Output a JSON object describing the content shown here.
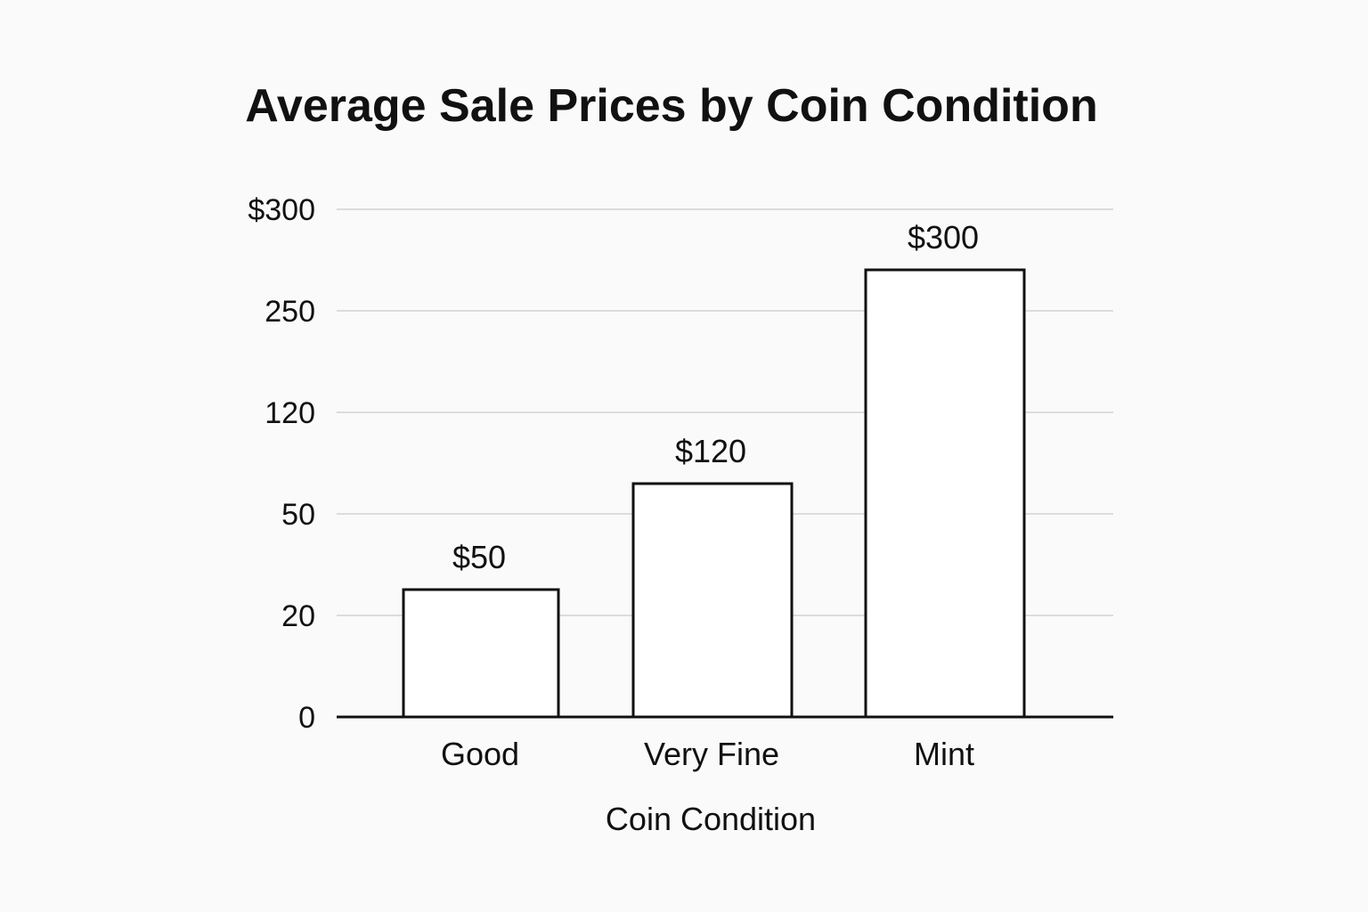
{
  "chart_data": {
    "type": "bar",
    "title": "Average Sale Prices by Coin Condition",
    "xlabel": "Coin Condition",
    "ylabel": "",
    "categories": [
      "Good",
      "Very Fine",
      "Mint"
    ],
    "values": [
      50,
      120,
      300
    ],
    "data_labels": [
      "$50",
      "$120",
      "$300"
    ],
    "y_ticks": [
      "0",
      "20",
      "50",
      "120",
      "250",
      "$300"
    ],
    "grid": true,
    "colors": {
      "bar_fill": "#ffffff",
      "bar_stroke": "#111111",
      "grid": "#dcdcdc",
      "text": "#111111",
      "background": "#fafafa"
    }
  }
}
